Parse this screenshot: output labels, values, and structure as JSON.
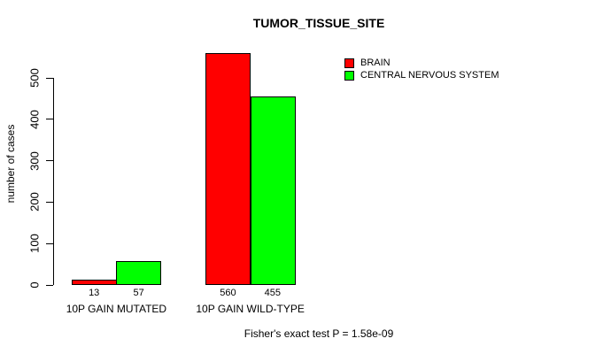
{
  "chart_data": {
    "type": "bar",
    "title": "TUMOR_TISSUE_SITE",
    "ylabel": "number of cases",
    "xlabel": "",
    "categories": [
      "10P GAIN MUTATED",
      "10P GAIN WILD-TYPE"
    ],
    "series": [
      {
        "name": "BRAIN",
        "color": "#ff0000",
        "values": [
          13,
          560
        ]
      },
      {
        "name": "CENTRAL NERVOUS SYSTEM",
        "color": "#00ff00",
        "values": [
          57,
          455
        ]
      }
    ],
    "bar_value_labels": [
      [
        13,
        57
      ],
      [
        560,
        455
      ]
    ],
    "yticks": [
      0,
      100,
      200,
      300,
      400,
      500
    ],
    "ylim": [
      0,
      585
    ],
    "grid": false,
    "legend_position": "top-right",
    "annotation": "Fisher's exact test P = 1.58e-09",
    "colors": {
      "background": "#ffffff",
      "axis": "#000000",
      "text": "#000000",
      "bar_border": "#000000"
    }
  }
}
